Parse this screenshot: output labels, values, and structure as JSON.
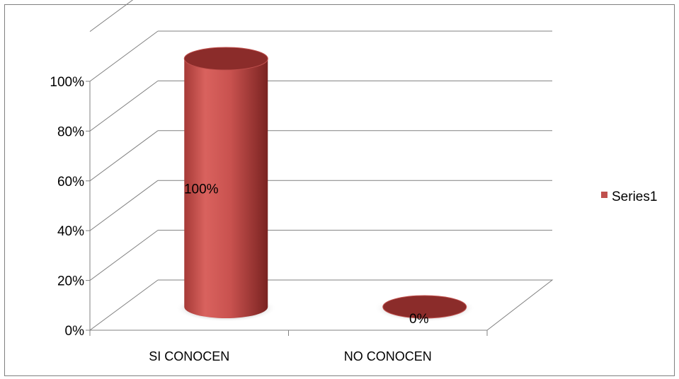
{
  "chart_data": {
    "type": "bar",
    "style": "3d-cylinder",
    "categories": [
      "SI CONOCEN",
      "NO CONOCEN"
    ],
    "series": [
      {
        "name": "Series1",
        "values": [
          1.0,
          0.0
        ],
        "data_labels": [
          "100%",
          "0%"
        ]
      }
    ],
    "y_ticks": [
      "0%",
      "20%",
      "40%",
      "60%",
      "80%",
      "100%"
    ],
    "ylim": [
      0,
      1
    ],
    "grid": true,
    "legend_position": "right",
    "colors": {
      "bar": "#c0504d",
      "bar_dark": "#8b2c2a",
      "grid": "#808080"
    }
  }
}
